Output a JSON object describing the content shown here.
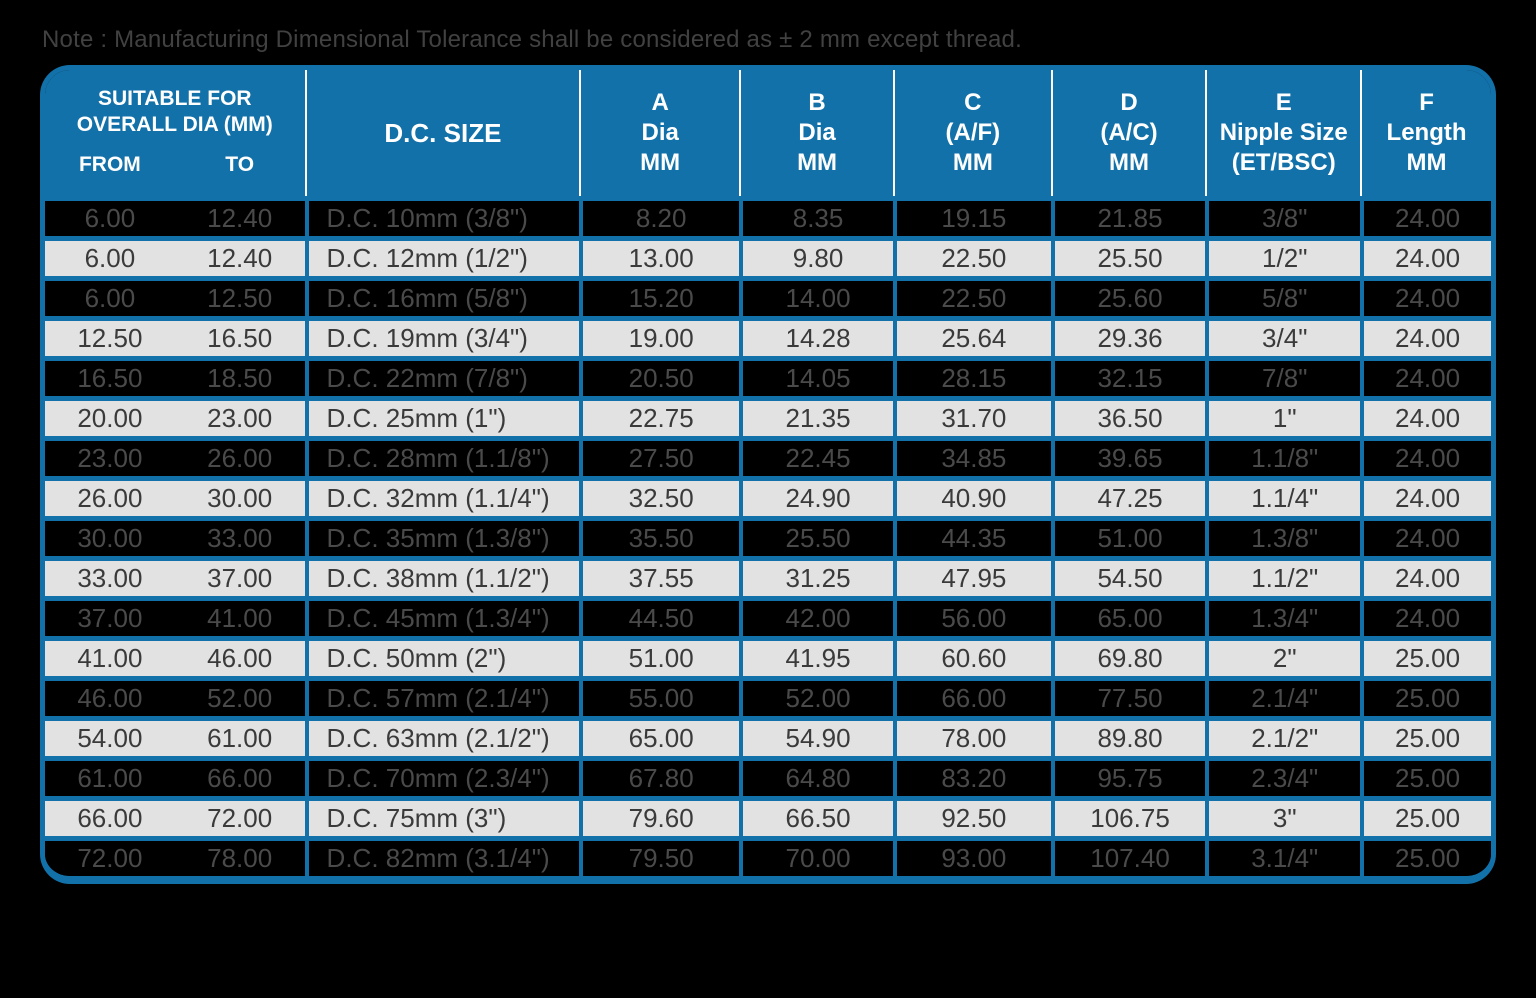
{
  "note": "Note : Manufacturing Dimensional Tolerance shall be considered as ± 2 mm except thread.",
  "colors": {
    "accent_blue": "#1371a9",
    "light_row_background": "#e2e2e2",
    "dark_row_background": "#000000",
    "header_text": "#ffffff"
  },
  "table": {
    "header": {
      "suitable": {
        "line1": "SUITABLE FOR",
        "line2": "OVERALL DIA (MM)",
        "from": "FROM",
        "to": "TO"
      },
      "dc_size": "D.C. SIZE",
      "col_a": {
        "line1": "A",
        "line2": "Dia",
        "line3": "MM"
      },
      "col_b": {
        "line1": "B",
        "line2": "Dia",
        "line3": "MM"
      },
      "col_c": {
        "line1": "C",
        "line2": "(A/F)",
        "line3": "MM"
      },
      "col_d": {
        "line1": "D",
        "line2": "(A/C)",
        "line3": "MM"
      },
      "col_e": {
        "line1": "E",
        "line2": "Nipple Size",
        "line3": "(ET/BSC)"
      },
      "col_f": {
        "line1": "F",
        "line2": "Length",
        "line3": "MM"
      }
    },
    "rows": [
      [
        "6.00",
        "12.40",
        "D.C. 10mm (3/8\")",
        "8.20",
        "8.35",
        "19.15",
        "21.85",
        "3/8\"",
        "24.00"
      ],
      [
        "6.00",
        "12.40",
        "D.C. 12mm (1/2\")",
        "13.00",
        "9.80",
        "22.50",
        "25.50",
        "1/2\"",
        "24.00"
      ],
      [
        "6.00",
        "12.50",
        "D.C. 16mm (5/8\")",
        "15.20",
        "14.00",
        "22.50",
        "25.60",
        "5/8\"",
        "24.00"
      ],
      [
        "12.50",
        "16.50",
        "D.C. 19mm (3/4\")",
        "19.00",
        "14.28",
        "25.64",
        "29.36",
        "3/4\"",
        "24.00"
      ],
      [
        "16.50",
        "18.50",
        "D.C. 22mm (7/8\")",
        "20.50",
        "14.05",
        "28.15",
        "32.15",
        "7/8\"",
        "24.00"
      ],
      [
        "20.00",
        "23.00",
        "D.C. 25mm (1\")",
        "22.75",
        "21.35",
        "31.70",
        "36.50",
        "1\"",
        "24.00"
      ],
      [
        "23.00",
        "26.00",
        "D.C. 28mm (1.1/8\")",
        "27.50",
        "22.45",
        "34.85",
        "39.65",
        "1.1/8\"",
        "24.00"
      ],
      [
        "26.00",
        "30.00",
        "D.C. 32mm (1.1/4\")",
        "32.50",
        "24.90",
        "40.90",
        "47.25",
        "1.1/4\"",
        "24.00"
      ],
      [
        "30.00",
        "33.00",
        "D.C. 35mm (1.3/8\")",
        "35.50",
        "25.50",
        "44.35",
        "51.00",
        "1.3/8\"",
        "24.00"
      ],
      [
        "33.00",
        "37.00",
        "D.C. 38mm (1.1/2\")",
        "37.55",
        "31.25",
        "47.95",
        "54.50",
        "1.1/2\"",
        "24.00"
      ],
      [
        "37.00",
        "41.00",
        "D.C. 45mm (1.3/4\")",
        "44.50",
        "42.00",
        "56.00",
        "65.00",
        "1.3/4\"",
        "24.00"
      ],
      [
        "41.00",
        "46.00",
        "D.C. 50mm (2\")",
        "51.00",
        "41.95",
        "60.60",
        "69.80",
        "2\"",
        "25.00"
      ],
      [
        "46.00",
        "52.00",
        "D.C. 57mm (2.1/4\")",
        "55.00",
        "52.00",
        "66.00",
        "77.50",
        "2.1/4\"",
        "25.00"
      ],
      [
        "54.00",
        "61.00",
        "D.C. 63mm (2.1/2\")",
        "65.00",
        "54.90",
        "78.00",
        "89.80",
        "2.1/2\"",
        "25.00"
      ],
      [
        "61.00",
        "66.00",
        "D.C. 70mm (2.3/4\")",
        "67.80",
        "64.80",
        "83.20",
        "95.75",
        "2.3/4\"",
        "25.00"
      ],
      [
        "66.00",
        "72.00",
        "D.C. 75mm (3\")",
        "79.60",
        "66.50",
        "92.50",
        "106.75",
        "3\"",
        "25.00"
      ],
      [
        "72.00",
        "78.00",
        "D.C. 82mm (3.1/4\")",
        "79.50",
        "70.00",
        "93.00",
        "107.40",
        "3.1/4\"",
        "25.00"
      ]
    ]
  }
}
